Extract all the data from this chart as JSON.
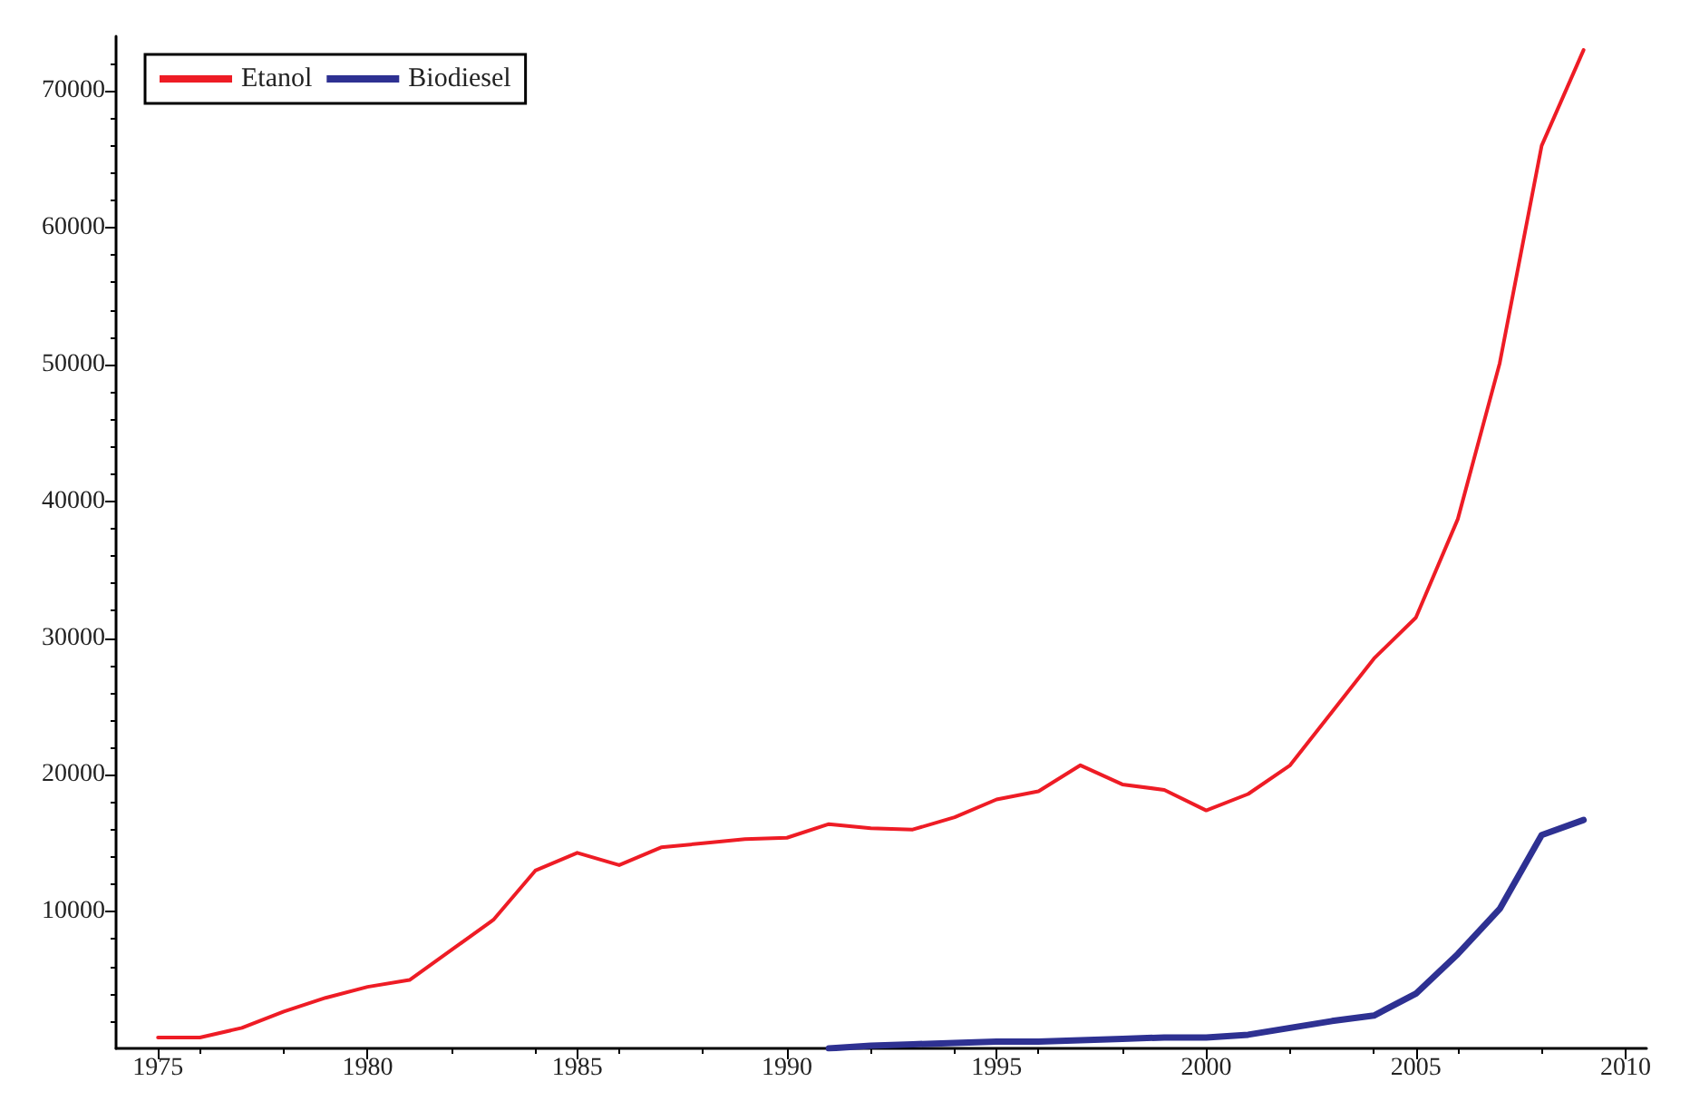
{
  "chart_data": {
    "type": "line",
    "x": [
      1975,
      1976,
      1977,
      1978,
      1979,
      1980,
      1981,
      1982,
      1983,
      1984,
      1985,
      1986,
      1987,
      1988,
      1989,
      1990,
      1991,
      1992,
      1993,
      1994,
      1995,
      1996,
      1997,
      1998,
      1999,
      2000,
      2001,
      2002,
      2003,
      2004,
      2005,
      2006,
      2007,
      2008,
      2009
    ],
    "series": [
      {
        "name": "Etanol",
        "color": "#ee1c25",
        "values": [
          800,
          800,
          1500,
          2700,
          3700,
          4500,
          5000,
          7200,
          9400,
          13000,
          14300,
          13400,
          14700,
          15000,
          15300,
          15400,
          16400,
          16100,
          16000,
          16900,
          18200,
          18800,
          20700,
          19300,
          18900,
          17400,
          18600,
          20700,
          24600,
          28500,
          31500,
          38700,
          50100,
          66000,
          73000
        ]
      },
      {
        "name": "Biodiesel",
        "color": "#2e3192",
        "values": [
          null,
          null,
          null,
          null,
          null,
          null,
          null,
          null,
          null,
          null,
          null,
          null,
          null,
          null,
          null,
          null,
          0,
          200,
          300,
          400,
          500,
          500,
          600,
          700,
          800,
          800,
          1000,
          1500,
          2000,
          2400,
          4000,
          6900,
          10200,
          15600,
          16700
        ]
      }
    ],
    "xlim": [
      1974,
      2010.5
    ],
    "xticks": [
      1975,
      1980,
      1985,
      1990,
      1995,
      2000,
      2005,
      2010
    ],
    "ylim": [
      0,
      74000
    ],
    "yticks": [
      10000,
      20000,
      30000,
      40000,
      50000,
      60000,
      70000
    ],
    "grid": false,
    "legend": "top left",
    "marker": "none",
    "line_style": "solid"
  }
}
